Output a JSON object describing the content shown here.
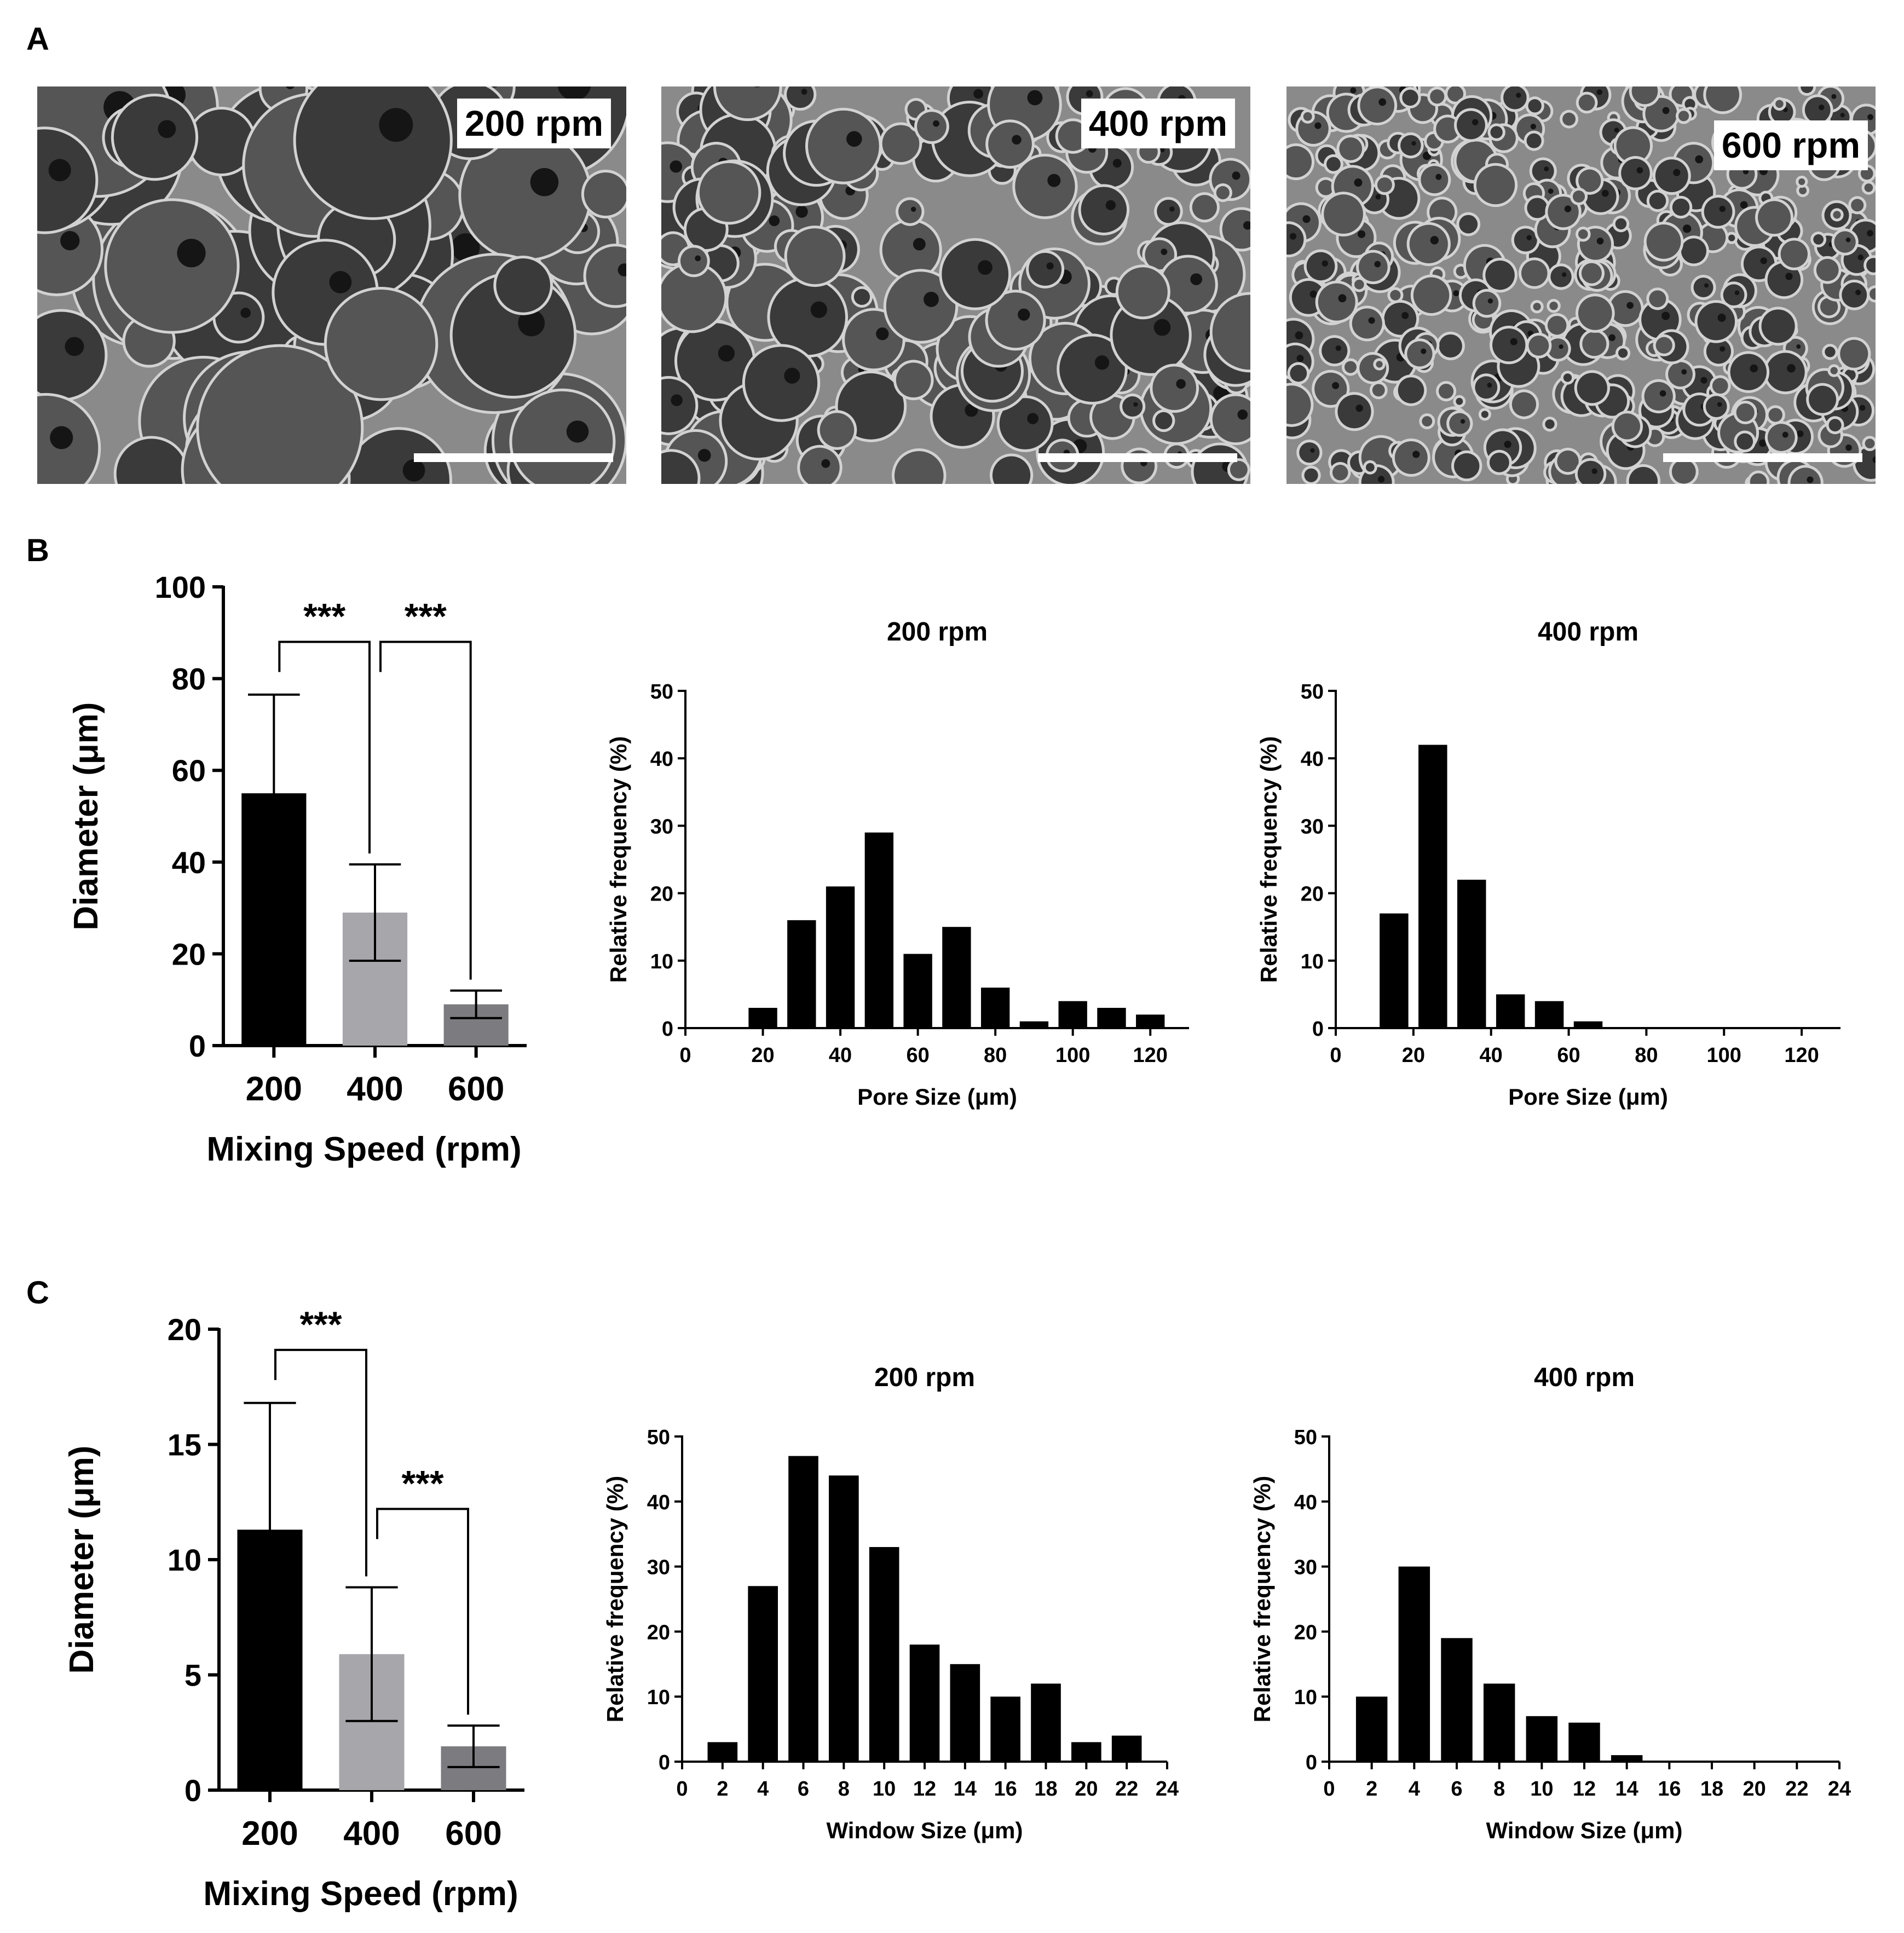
{
  "panels": {
    "a": "A",
    "b": "B",
    "c": "C"
  },
  "sem_images": [
    {
      "label": "200 rpm",
      "pore_scale": "large"
    },
    {
      "label": "400 rpm",
      "pore_scale": "medium"
    },
    {
      "label": "600 rpm",
      "pore_scale": "small"
    }
  ],
  "colors": {
    "bar_200": "#000000",
    "bar_400": "#a6a6ab",
    "bar_600": "#7c7c80",
    "hist": "#000000",
    "sem_background": "#6e6e6e"
  },
  "chart_data": [
    {
      "id": "b-bar",
      "type": "bar",
      "categories": [
        "200",
        "400",
        "600"
      ],
      "values": [
        55,
        29,
        9
      ],
      "errors": [
        21.5,
        10.5,
        3
      ],
      "ylim": [
        0,
        100
      ],
      "yticks": [
        0,
        20,
        40,
        60,
        80,
        100
      ],
      "xlabel": "Mixing Speed (rpm)",
      "ylabel": "Diameter (μm)",
      "significance": [
        {
          "from": 0,
          "to": 1,
          "label": "***",
          "y": 88
        },
        {
          "from": 1,
          "to": 2,
          "label": "***",
          "y": 88
        }
      ]
    },
    {
      "id": "b-hist-200",
      "type": "bar",
      "title": "200 rpm",
      "x": [
        20,
        30,
        40,
        50,
        60,
        70,
        80,
        90,
        100,
        110,
        120
      ],
      "values": [
        3,
        16,
        21,
        29,
        11,
        15,
        6,
        1,
        4,
        3,
        2
      ],
      "xlim": [
        0,
        130
      ],
      "xticks": [
        0,
        20,
        40,
        60,
        80,
        100,
        120
      ],
      "ylim": [
        0,
        50
      ],
      "yticks": [
        0,
        10,
        20,
        30,
        40,
        50
      ],
      "xlabel": "Pore Size (μm)",
      "ylabel": "Relative frequency (%)"
    },
    {
      "id": "b-hist-400",
      "type": "bar",
      "title": "400 rpm",
      "x": [
        15,
        25,
        35,
        45,
        55,
        65
      ],
      "values": [
        17,
        42,
        22,
        5,
        4,
        1
      ],
      "xlim": [
        0,
        130
      ],
      "xticks": [
        0,
        20,
        40,
        60,
        80,
        100,
        120
      ],
      "ylim": [
        0,
        50
      ],
      "yticks": [
        0,
        10,
        20,
        30,
        40,
        50
      ],
      "xlabel": "Pore Size (μm)",
      "ylabel": "Relative frequency (%)"
    },
    {
      "id": "c-bar",
      "type": "bar",
      "categories": [
        "200",
        "400",
        "600"
      ],
      "values": [
        11.3,
        5.9,
        1.9
      ],
      "errors": [
        5.5,
        2.9,
        0.9
      ],
      "ylim": [
        0,
        20
      ],
      "yticks": [
        0,
        5,
        10,
        15,
        20
      ],
      "xlabel": "Mixing Speed (rpm)",
      "ylabel": "Diameter (μm)",
      "significance": [
        {
          "from": 0,
          "to": 1,
          "label": "***",
          "y": 19.1
        },
        {
          "from": 1,
          "to": 2,
          "label": "***",
          "y": 12.2
        }
      ]
    },
    {
      "id": "c-hist-200",
      "type": "bar",
      "title": "200 rpm",
      "x": [
        2,
        4,
        6,
        8,
        10,
        12,
        14,
        16,
        18,
        20,
        22
      ],
      "values": [
        3,
        27,
        47,
        44,
        33,
        18,
        15,
        10,
        12,
        3,
        4
      ],
      "xlim": [
        0,
        24
      ],
      "xticks": [
        0,
        2,
        4,
        6,
        8,
        10,
        12,
        14,
        16,
        18,
        20,
        22,
        24
      ],
      "ylim": [
        0,
        50
      ],
      "yticks": [
        0,
        10,
        20,
        30,
        40,
        50
      ],
      "xlabel": "Window Size (μm)",
      "ylabel": "Relative frequency (%)"
    },
    {
      "id": "c-hist-400",
      "type": "bar",
      "title": "400 rpm",
      "x": [
        2,
        4,
        6,
        8,
        10,
        12,
        14
      ],
      "values": [
        10,
        30,
        19,
        12,
        7,
        6,
        1
      ],
      "xlim": [
        0,
        24
      ],
      "xticks": [
        0,
        2,
        4,
        6,
        8,
        10,
        12,
        14,
        16,
        18,
        20,
        22,
        24
      ],
      "ylim": [
        0,
        50
      ],
      "yticks": [
        0,
        10,
        20,
        30,
        40,
        50
      ],
      "xlabel": "Window Size (μm)",
      "ylabel": "Relative frequency (%)"
    }
  ]
}
